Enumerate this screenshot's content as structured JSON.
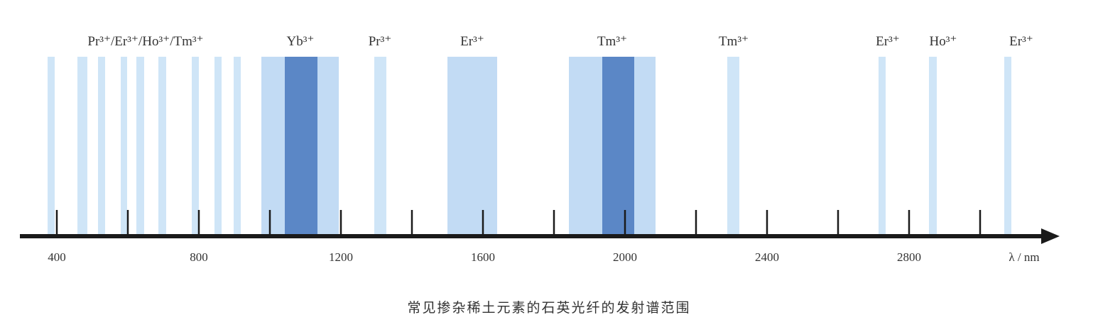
{
  "chart_data": {
    "type": "spectral-band-diagram",
    "title": "常见掺杂稀土元素的石英光纤的发射谱范围",
    "xlabel": "λ / nm",
    "xlim": [
      300,
      3250
    ],
    "tick_labels": [
      400,
      800,
      1200,
      1600,
      2000,
      2400,
      2800
    ],
    "minor_ticks": [
      400,
      600,
      800,
      1000,
      1200,
      1400,
      1600,
      1800,
      2000,
      2200,
      2400,
      2600,
      2800,
      3000
    ],
    "colors": {
      "light": "#cfe5f7",
      "medium": "#c2dbf4",
      "dark": "#5b87c6",
      "axis": "#1a1a1a"
    },
    "bands": [
      {
        "from": 374,
        "to": 394,
        "shade": "light"
      },
      {
        "from": 458,
        "to": 486,
        "shade": "light"
      },
      {
        "from": 516,
        "to": 536,
        "shade": "light"
      },
      {
        "from": 580,
        "to": 598,
        "shade": "light"
      },
      {
        "from": 624,
        "to": 646,
        "shade": "light"
      },
      {
        "from": 686,
        "to": 708,
        "shade": "light"
      },
      {
        "from": 780,
        "to": 800,
        "shade": "light"
      },
      {
        "from": 844,
        "to": 864,
        "shade": "light"
      },
      {
        "from": 898,
        "to": 918,
        "shade": "light"
      },
      {
        "from": 976,
        "to": 1194,
        "shade": "medium"
      },
      {
        "from": 1042,
        "to": 1134,
        "shade": "dark"
      },
      {
        "from": 1294,
        "to": 1328,
        "shade": "light"
      },
      {
        "from": 1500,
        "to": 1640,
        "shade": "medium"
      },
      {
        "from": 1842,
        "to": 2086,
        "shade": "medium"
      },
      {
        "from": 1936,
        "to": 2026,
        "shade": "dark"
      },
      {
        "from": 2288,
        "to": 2322,
        "shade": "light"
      },
      {
        "from": 2714,
        "to": 2734,
        "shade": "light"
      },
      {
        "from": 2856,
        "to": 2878,
        "shade": "light"
      },
      {
        "from": 3068,
        "to": 3088,
        "shade": "light"
      }
    ],
    "ion_labels": [
      {
        "text": "Pr³⁺/Er³⁺/Ho³⁺/Tm³⁺",
        "at": 650
      },
      {
        "text": "Yb³⁺",
        "at": 1086
      },
      {
        "text": "Pr³⁺",
        "at": 1310
      },
      {
        "text": "Er³⁺",
        "at": 1570
      },
      {
        "text": "Tm³⁺",
        "at": 1964
      },
      {
        "text": "Tm³⁺",
        "at": 2306
      },
      {
        "text": "Er³⁺",
        "at": 2740
      },
      {
        "text": "Ho³⁺",
        "at": 2896
      },
      {
        "text": "Er³⁺",
        "at": 3116
      }
    ]
  }
}
